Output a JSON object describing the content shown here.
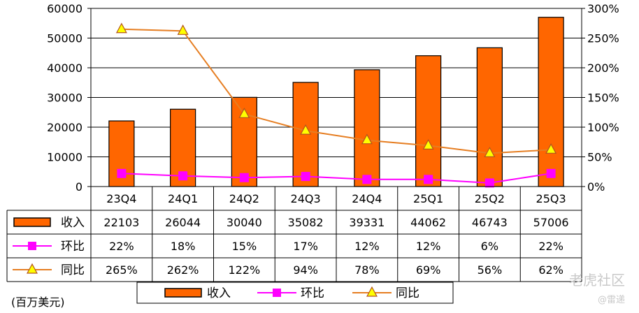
{
  "chart_data": {
    "type": "bar",
    "unit_label": "(百万美元)",
    "categories": [
      "23Q4",
      "24Q1",
      "24Q2",
      "24Q3",
      "24Q4",
      "25Q1",
      "25Q2",
      "25Q3"
    ],
    "y_left": {
      "min": 0,
      "max": 60000,
      "ticks": [
        "0",
        "10000",
        "20000",
        "30000",
        "40000",
        "50000",
        "60000"
      ]
    },
    "y_right": {
      "min": 0,
      "max": 300,
      "ticks": [
        "0%",
        "50%",
        "100%",
        "150%",
        "200%",
        "250%",
        "300%"
      ]
    },
    "grid": true,
    "legend_position": "bottom",
    "series": [
      {
        "name": "收入",
        "kind": "bar",
        "axis": "left",
        "color": "#ff6600",
        "values": [
          22103,
          26044,
          30040,
          35082,
          39331,
          44062,
          46743,
          57006
        ],
        "labels": [
          "22103",
          "26044",
          "30040",
          "35082",
          "39331",
          "44062",
          "46743",
          "57006"
        ]
      },
      {
        "name": "环比",
        "kind": "line",
        "marker": "square",
        "axis": "right",
        "color": "#ff00ff",
        "values": [
          22,
          18,
          15,
          17,
          12,
          12,
          6,
          22
        ],
        "labels": [
          "22%",
          "18%",
          "15%",
          "17%",
          "12%",
          "12%",
          "6%",
          "22%"
        ]
      },
      {
        "name": "同比",
        "kind": "line",
        "marker": "triangle",
        "axis": "right",
        "color": "#e67e22",
        "values": [
          265,
          262,
          122,
          94,
          78,
          69,
          56,
          62
        ],
        "labels": [
          "265%",
          "262%",
          "122%",
          "94%",
          "78%",
          "69%",
          "56%",
          "62%"
        ]
      }
    ]
  },
  "watermark": {
    "text_1": "老虎社区",
    "text_2": "@雷递"
  }
}
